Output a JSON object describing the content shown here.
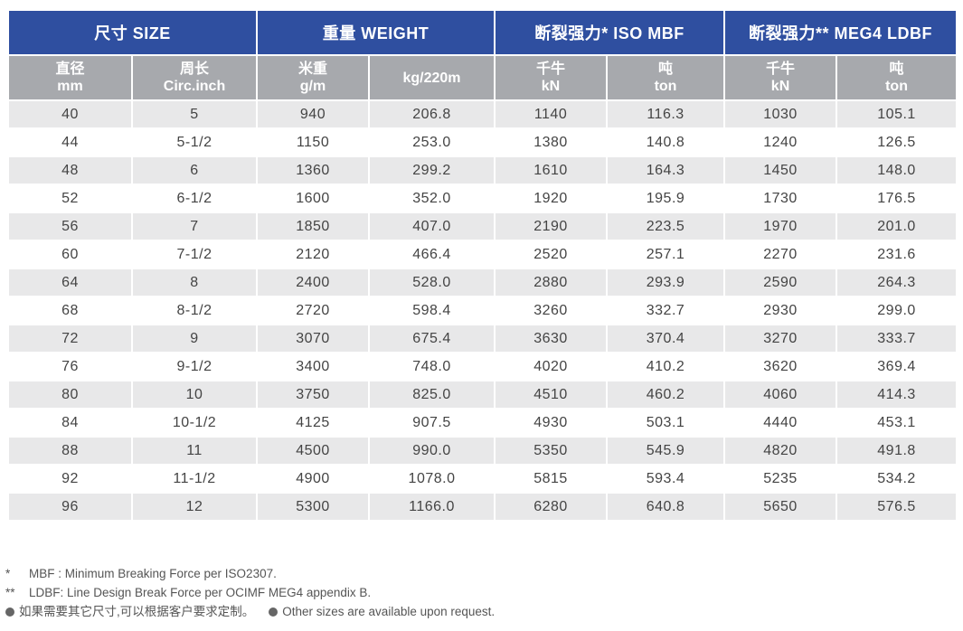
{
  "header_groups": [
    {
      "label": "尺寸 SIZE"
    },
    {
      "label": "重量  WEIGHT"
    },
    {
      "label": "断裂强力*  ISO MBF"
    },
    {
      "label": "断裂强力**  MEG4 LDBF"
    }
  ],
  "sub_headers": [
    {
      "line1": "直径",
      "line2": "mm"
    },
    {
      "line1": "周长",
      "line2": "Circ.inch"
    },
    {
      "line1": "米重",
      "line2": "g/m"
    },
    {
      "line1": "kg/220m",
      "line2": ""
    },
    {
      "line1": "千牛",
      "line2": "kN"
    },
    {
      "line1": "吨",
      "line2": "ton"
    },
    {
      "line1": "千牛",
      "line2": "kN"
    },
    {
      "line1": "吨",
      "line2": "ton"
    }
  ],
  "rows": [
    [
      "40",
      "5",
      "940",
      "206.8",
      "1140",
      "116.3",
      "1030",
      "105.1"
    ],
    [
      "44",
      "5-1/2",
      "1150",
      "253.0",
      "1380",
      "140.8",
      "1240",
      "126.5"
    ],
    [
      "48",
      "6",
      "1360",
      "299.2",
      "1610",
      "164.3",
      "1450",
      "148.0"
    ],
    [
      "52",
      "6-1/2",
      "1600",
      "352.0",
      "1920",
      "195.9",
      "1730",
      "176.5"
    ],
    [
      "56",
      "7",
      "1850",
      "407.0",
      "2190",
      "223.5",
      "1970",
      "201.0"
    ],
    [
      "60",
      "7-1/2",
      "2120",
      "466.4",
      "2520",
      "257.1",
      "2270",
      "231.6"
    ],
    [
      "64",
      "8",
      "2400",
      "528.0",
      "2880",
      "293.9",
      "2590",
      "264.3"
    ],
    [
      "68",
      "8-1/2",
      "2720",
      "598.4",
      "3260",
      "332.7",
      "2930",
      "299.0"
    ],
    [
      "72",
      "9",
      "3070",
      "675.4",
      "3630",
      "370.4",
      "3270",
      "333.7"
    ],
    [
      "76",
      "9-1/2",
      "3400",
      "748.0",
      "4020",
      "410.2",
      "3620",
      "369.4"
    ],
    [
      "80",
      "10",
      "3750",
      "825.0",
      "4510",
      "460.2",
      "4060",
      "414.3"
    ],
    [
      "84",
      "10-1/2",
      "4125",
      "907.5",
      "4930",
      "503.1",
      "4440",
      "453.1"
    ],
    [
      "88",
      "11",
      "4500",
      "990.0",
      "5350",
      "545.9",
      "4820",
      "491.8"
    ],
    [
      "92",
      "11-1/2",
      "4900",
      "1078.0",
      "5815",
      "593.4",
      "5235",
      "534.2"
    ],
    [
      "96",
      "12",
      "5300",
      "1166.0",
      "6280",
      "640.8",
      "5650",
      "576.5"
    ]
  ],
  "notes": {
    "mbf_marker": "*",
    "mbf_text": "MBF : Minimum Breaking Force per ISO2307.",
    "ldbf_marker": "**",
    "ldbf_text": "LDBF: Line Design Break Force per OCIMF MEG4 appendix B.",
    "sizes_cn": "如果需要其它尺寸,可以根据客户要求定制。",
    "sizes_en": "Other sizes are available upon request."
  },
  "colors": {
    "header_blue": "#2f4fa0",
    "subheader_gray": "#a7a9ad",
    "row_stripe": "#e8e8e9"
  }
}
